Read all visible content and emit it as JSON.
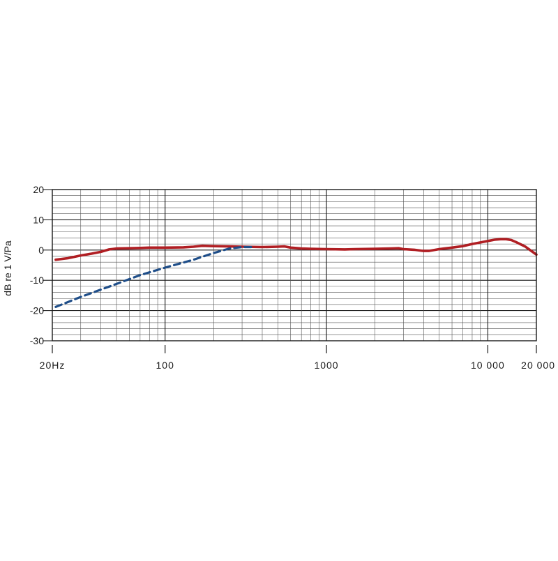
{
  "chart_data": {
    "type": "line",
    "title": "",
    "xlabel": "",
    "ylabel": "dB re 1 V/Pa",
    "x_scale": "log",
    "xlim": [
      20,
      20000
    ],
    "ylim": [
      -30,
      20
    ],
    "grid": true,
    "x_ticks": [
      {
        "value": 20,
        "label": "20Hz"
      },
      {
        "value": 100,
        "label": "100"
      },
      {
        "value": 1000,
        "label": "1000"
      },
      {
        "value": 10000,
        "label": "10 000"
      },
      {
        "value": 20000,
        "label": "20 000"
      }
    ],
    "y_ticks": [
      {
        "value": 20,
        "label": "20"
      },
      {
        "value": 10,
        "label": "10"
      },
      {
        "value": 0,
        "label": "0"
      },
      {
        "value": -10,
        "label": "-10"
      },
      {
        "value": -20,
        "label": "-20"
      },
      {
        "value": -30,
        "label": "-30"
      }
    ],
    "series": [
      {
        "color": "#b01e23",
        "style": "solid",
        "points": [
          [
            21,
            -3.2
          ],
          [
            25,
            -2.7
          ],
          [
            30,
            -1.8
          ],
          [
            35,
            -1.2
          ],
          [
            40,
            -0.6
          ],
          [
            45,
            0.2
          ],
          [
            50,
            0.5
          ],
          [
            60,
            0.6
          ],
          [
            70,
            0.7
          ],
          [
            80,
            0.8
          ],
          [
            100,
            0.8
          ],
          [
            130,
            0.9
          ],
          [
            150,
            1.1
          ],
          [
            170,
            1.4
          ],
          [
            200,
            1.3
          ],
          [
            250,
            1.2
          ],
          [
            300,
            1.1
          ],
          [
            400,
            1.0
          ],
          [
            500,
            1.1
          ],
          [
            550,
            1.2
          ],
          [
            600,
            0.8
          ],
          [
            700,
            0.5
          ],
          [
            800,
            0.4
          ],
          [
            1000,
            0.3
          ],
          [
            1300,
            0.2
          ],
          [
            1500,
            0.3
          ],
          [
            2000,
            0.4
          ],
          [
            2500,
            0.5
          ],
          [
            2800,
            0.6
          ],
          [
            3000,
            0.3
          ],
          [
            3500,
            0.1
          ],
          [
            4000,
            -0.3
          ],
          [
            4300,
            -0.3
          ],
          [
            5000,
            0.3
          ],
          [
            6000,
            0.8
          ],
          [
            7000,
            1.3
          ],
          [
            8000,
            2.0
          ],
          [
            9000,
            2.5
          ],
          [
            10000,
            3.0
          ],
          [
            11000,
            3.4
          ],
          [
            12000,
            3.6
          ],
          [
            13000,
            3.6
          ],
          [
            14000,
            3.3
          ],
          [
            15000,
            2.6
          ],
          [
            17000,
            1.2
          ],
          [
            20000,
            -1.5
          ]
        ]
      },
      {
        "color": "#1f4e89",
        "style": "dashed",
        "points": [
          [
            21,
            -18.8
          ],
          [
            30,
            -15.5
          ],
          [
            50,
            -11.2
          ],
          [
            70,
            -8.3
          ],
          [
            100,
            -5.8
          ],
          [
            150,
            -3.2
          ],
          [
            200,
            -1.0
          ],
          [
            250,
            0.5
          ],
          [
            300,
            1.0
          ],
          [
            350,
            1.0
          ]
        ]
      }
    ]
  }
}
